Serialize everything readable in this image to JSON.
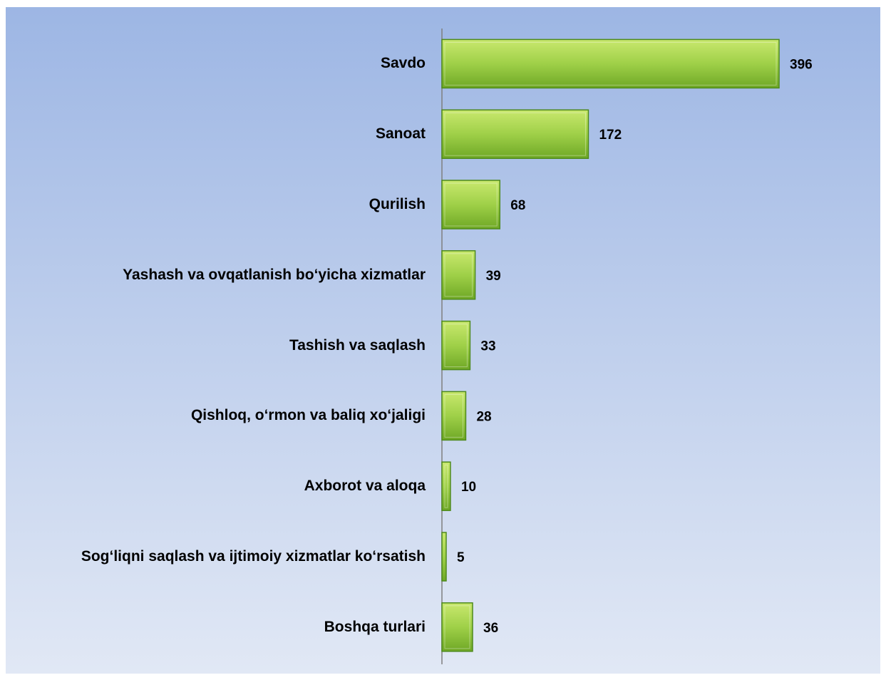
{
  "chart_data": {
    "type": "barh",
    "categories": [
      "Savdo",
      "Sanoat",
      "Qurilish",
      "Yashash va ovqatlanish bo‘yicha xizmatlar",
      "Tashish va saqlash",
      "Qishloq, o‘rmon va baliq xo‘jaligi",
      "Axborot va aloqa",
      "Sog‘liqni saqlash va ijtimoiy xizmatlar ko‘rsatish",
      "Boshqa turlari"
    ],
    "values": [
      396,
      172,
      68,
      39,
      33,
      28,
      10,
      5,
      36
    ],
    "color": "#8cc63f"
  }
}
